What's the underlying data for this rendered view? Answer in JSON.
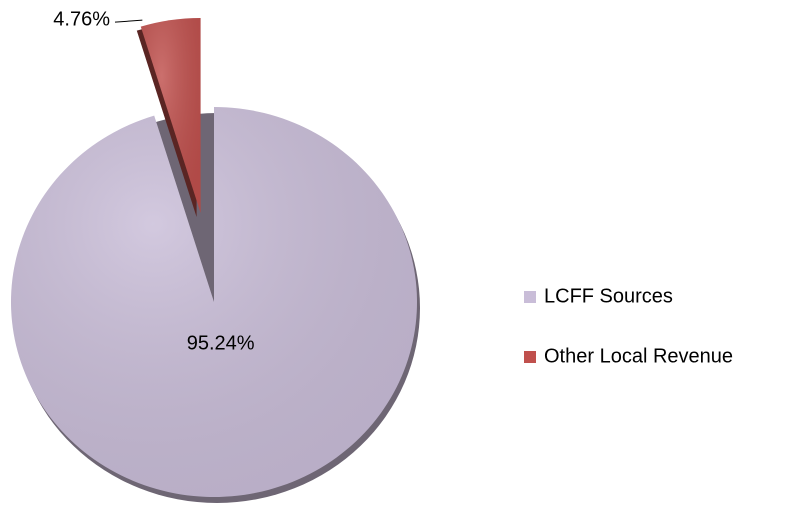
{
  "chart_data": {
    "type": "pie",
    "categories": [
      "LCFF Sources",
      "Other Local Revenue"
    ],
    "values": [
      95.24,
      4.76
    ],
    "value_labels": [
      "95.24%",
      "4.76%"
    ],
    "colors": [
      "#c9bdd8",
      "#c0504d"
    ],
    "legend": "right"
  }
}
